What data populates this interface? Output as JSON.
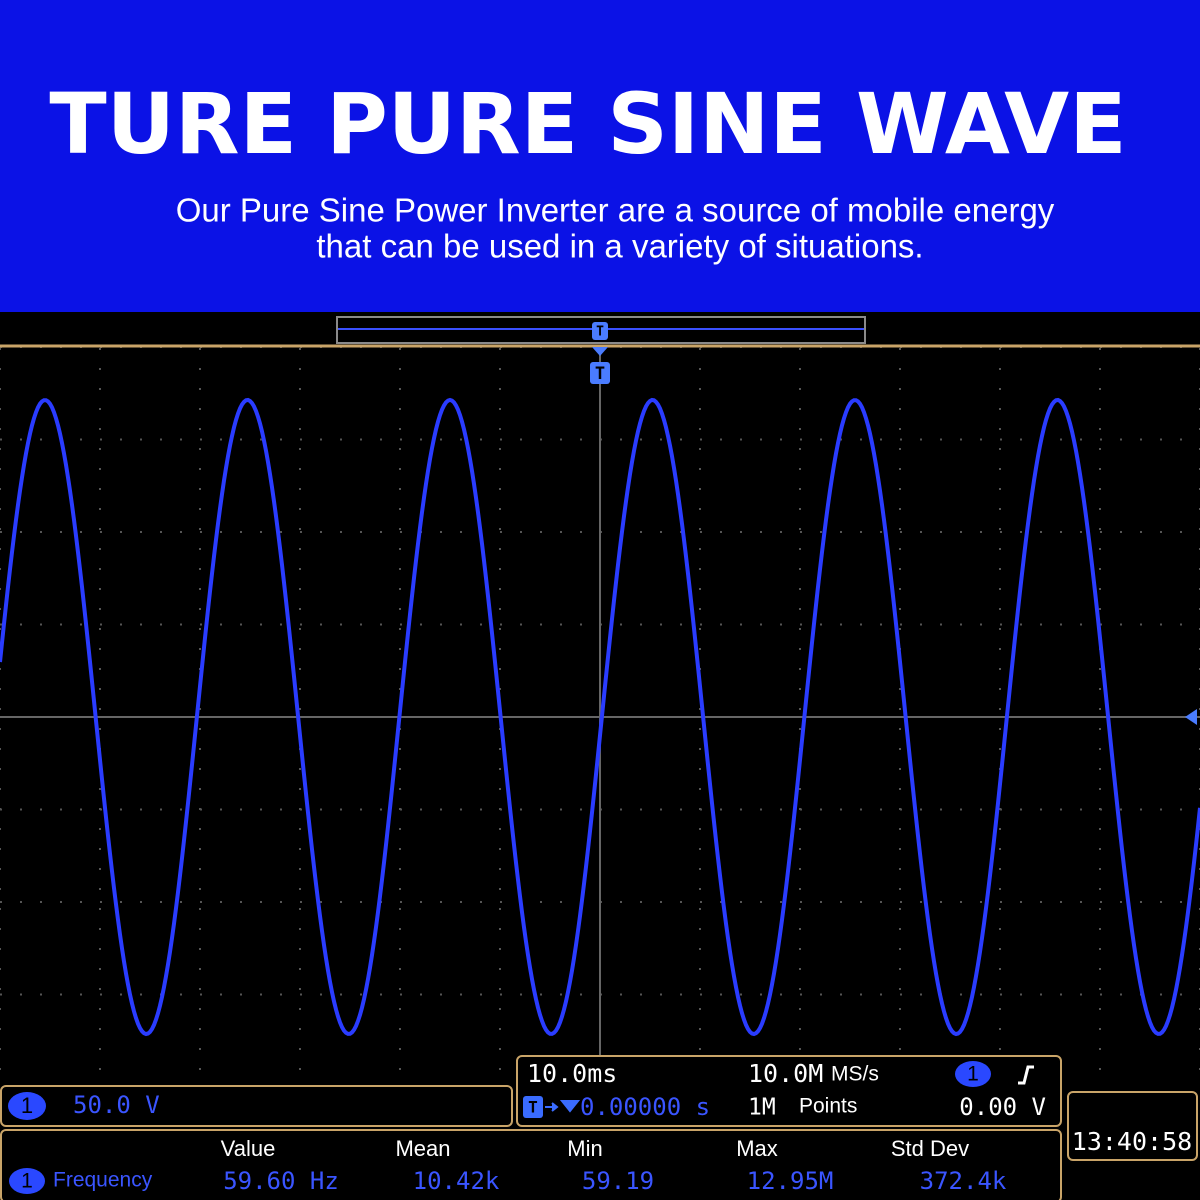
{
  "header": {
    "title": "TURE PURE SINE WAVE",
    "subtitle_lines": [
      "Our Pure Sine Power Inverter are a source of mobile energy",
      "that can be used in a variety of situations."
    ]
  },
  "scope": {
    "trigger_marker": "T",
    "channel": {
      "badge": "1",
      "scale": "50.0 V"
    },
    "timebase": {
      "time_per_div": "10.0ms",
      "sample_rate": "10.0M",
      "sample_rate_unit": "MS/s",
      "trigger_badge": "1",
      "delay": "0.00000 s",
      "record_length": "1M",
      "record_unit": "Points",
      "trigger_level": "0.00 V"
    },
    "clock": "13:40:58",
    "measurements": {
      "headers": [
        "Value",
        "Mean",
        "Min",
        "Max",
        "Std Dev"
      ],
      "row": {
        "badge": "1",
        "name": "Frequency",
        "cells": [
          "59.60 Hz",
          "10.42k",
          "59.19",
          "12.95M",
          "372.4k"
        ]
      }
    }
  }
}
